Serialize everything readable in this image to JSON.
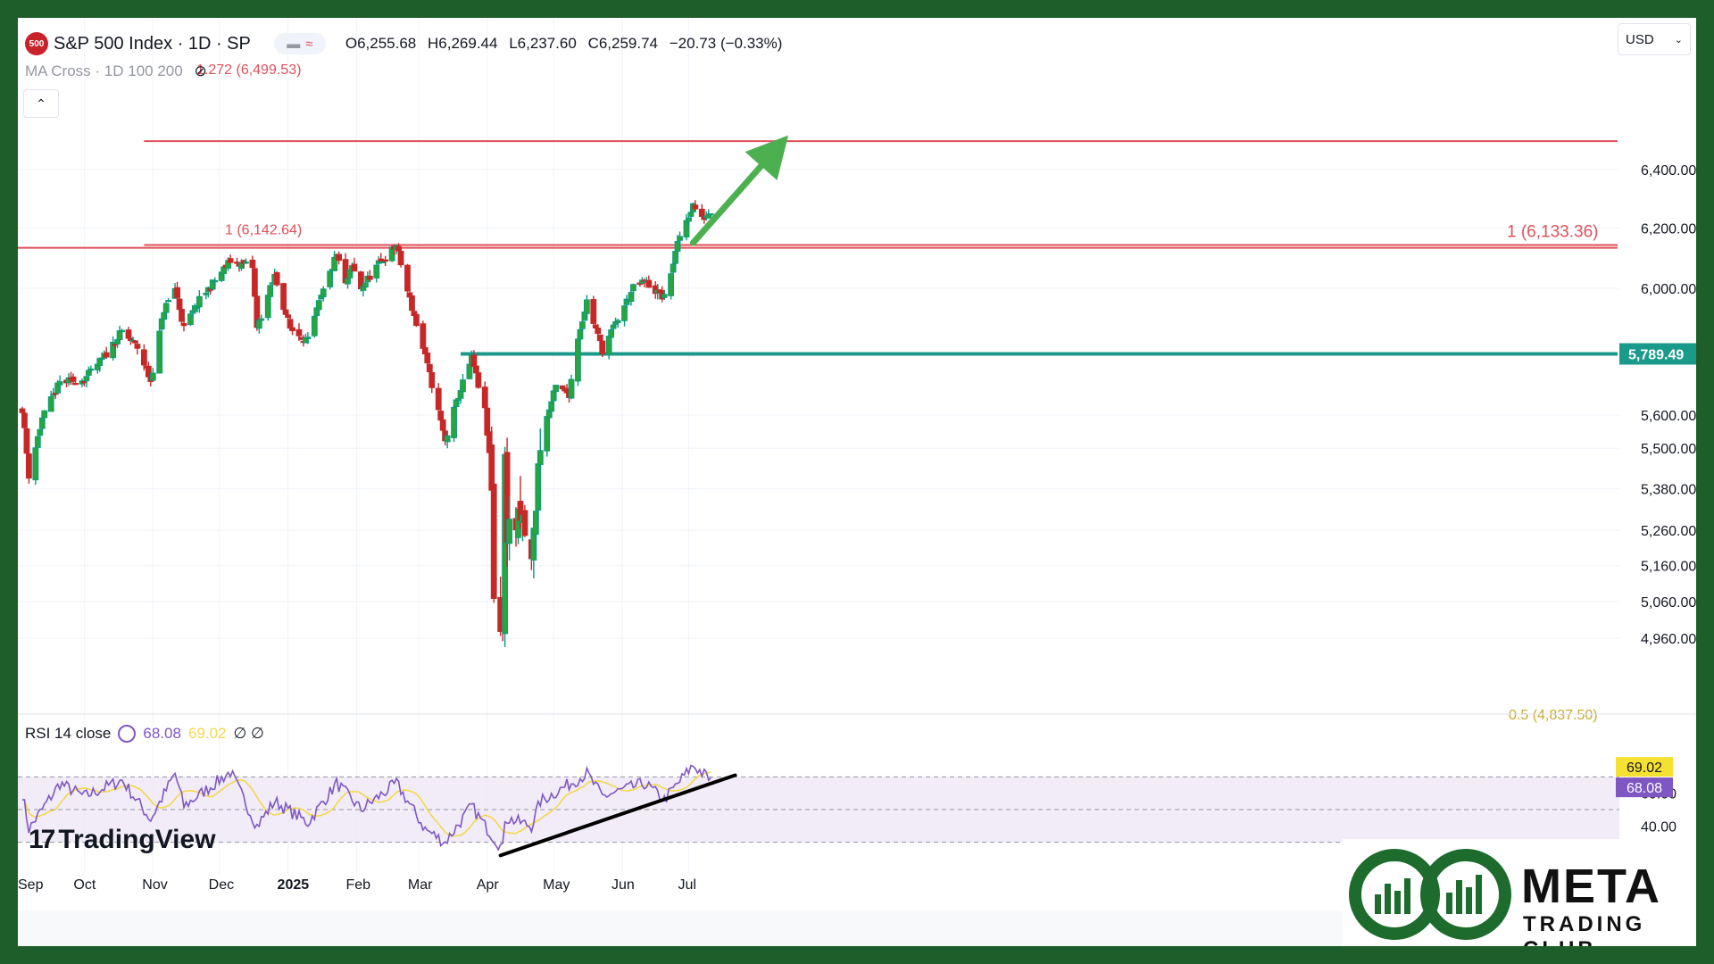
{
  "header": {
    "badge": "500",
    "symbol": "S&P 500 Index · 1D · SP",
    "open": "O6,255.68",
    "high": "H6,269.44",
    "low": "L6,237.60",
    "close": "C6,259.74",
    "change": "−20.73 (−0.33%)"
  },
  "indicator_label": "MA Cross · 1D 100 200",
  "currency": "USD",
  "rsi": {
    "label": "RSI 14 close",
    "value": "68.08",
    "ma_value": "69.02",
    "extra": "∅ ∅"
  },
  "branding": {
    "tv": "TradingView",
    "meta_name": "META",
    "meta_sub": "TRADING CLUB"
  },
  "colors": {
    "up": "#089981",
    "up_fill": "#26a541",
    "down": "#c62828",
    "fib": "#e0505a",
    "support": "#1a9a8a",
    "rsi_line": "#7e57c2",
    "rsi_ma": "#f2d84d",
    "arrow": "#4caf50"
  },
  "chart_data": {
    "type": "candlestick",
    "y_scale": "log",
    "x_labels": [
      "Sep",
      "Oct",
      "Nov",
      "Dec",
      "2025",
      "Feb",
      "Mar",
      "Apr",
      "May",
      "Jun",
      "Jul"
    ],
    "y_ticks": [
      4960,
      5060,
      5160,
      5260,
      5380,
      5500,
      5600,
      6000,
      6200,
      6400
    ],
    "y_tick_labels": [
      "4,960.00",
      "5,060.00",
      "5,160.00",
      "5,260.00",
      "5,380.00",
      "5,500.00",
      "5,600.00",
      "6,000.00",
      "6,200.00",
      "6,400.00"
    ],
    "waypoints": [
      {
        "date": "2024-09-03",
        "close": 5620
      },
      {
        "date": "2024-09-06",
        "close": 5420
      },
      {
        "date": "2024-09-12",
        "close": 5590
      },
      {
        "date": "2024-09-20",
        "close": 5700
      },
      {
        "date": "2024-10-01",
        "close": 5710
      },
      {
        "date": "2024-10-10",
        "close": 5780
      },
      {
        "date": "2024-10-18",
        "close": 5860
      },
      {
        "date": "2024-10-25",
        "close": 5810
      },
      {
        "date": "2024-10-31",
        "close": 5705
      },
      {
        "date": "2024-11-06",
        "close": 5930
      },
      {
        "date": "2024-11-11",
        "close": 6000
      },
      {
        "date": "2024-11-15",
        "close": 5870
      },
      {
        "date": "2024-11-22",
        "close": 5960
      },
      {
        "date": "2024-12-06",
        "close": 6090
      },
      {
        "date": "2024-12-16",
        "close": 6070
      },
      {
        "date": "2024-12-18",
        "close": 5870
      },
      {
        "date": "2024-12-26",
        "close": 6040
      },
      {
        "date": "2025-01-02",
        "close": 5870
      },
      {
        "date": "2025-01-10",
        "close": 5830
      },
      {
        "date": "2025-01-15",
        "close": 5950
      },
      {
        "date": "2025-01-23",
        "close": 6110
      },
      {
        "date": "2025-01-27",
        "close": 6010
      },
      {
        "date": "2025-01-30",
        "close": 6070
      },
      {
        "date": "2025-02-03",
        "close": 6000
      },
      {
        "date": "2025-02-10",
        "close": 6070
      },
      {
        "date": "2025-02-19",
        "close": 6140
      },
      {
        "date": "2025-02-24",
        "close": 5990
      },
      {
        "date": "2025-03-04",
        "close": 5780
      },
      {
        "date": "2025-03-10",
        "close": 5610
      },
      {
        "date": "2025-03-13",
        "close": 5520
      },
      {
        "date": "2025-03-19",
        "close": 5660
      },
      {
        "date": "2025-03-25",
        "close": 5775
      },
      {
        "date": "2025-03-31",
        "close": 5610
      },
      {
        "date": "2025-04-03",
        "close": 5400
      },
      {
        "date": "2025-04-04",
        "close": 5074
      },
      {
        "date": "2025-04-08",
        "close": 4982
      },
      {
        "date": "2025-04-09",
        "close": 5456
      },
      {
        "date": "2025-04-10",
        "close": 5268
      },
      {
        "date": "2025-04-17",
        "close": 5280
      },
      {
        "date": "2025-04-21",
        "close": 5160
      },
      {
        "date": "2025-04-25",
        "close": 5525
      },
      {
        "date": "2025-05-02",
        "close": 5686
      },
      {
        "date": "2025-05-08",
        "close": 5665
      },
      {
        "date": "2025-05-12",
        "close": 5844
      },
      {
        "date": "2025-05-16",
        "close": 5958
      },
      {
        "date": "2025-05-23",
        "close": 5802
      },
      {
        "date": "2025-06-06",
        "close": 6000
      },
      {
        "date": "2025-06-11",
        "close": 6022
      },
      {
        "date": "2025-06-20",
        "close": 5967
      },
      {
        "date": "2025-06-27",
        "close": 6173
      },
      {
        "date": "2025-07-03",
        "close": 6279
      },
      {
        "date": "2025-07-07",
        "close": 6229
      },
      {
        "date": "2025-07-11",
        "close": 6259
      }
    ],
    "levels": [
      {
        "label": "1.272 (6,499.53)",
        "value": 6499.53,
        "from_date": "2024-10-28"
      },
      {
        "label": "1 (6,142.64)",
        "value": 6142.64,
        "from_date": "2024-10-28"
      },
      {
        "label": "1 (6,133.36)",
        "value": 6133.36,
        "from_date": "2024-09-01"
      },
      {
        "label": "0.5 (4,837.50)",
        "value": 4837.5,
        "from_date": "2025-06-30"
      }
    ],
    "support": {
      "label": "5,789.49",
      "value": 5789.49,
      "from_date": "2025-03-20"
    },
    "trend_arrow": {
      "from_date": "2025-07-03",
      "from_value": 6150,
      "to_date": "2025-08-15",
      "to_value": 6520
    },
    "rsi_panel": {
      "ticks": [
        40,
        60
      ],
      "tick_labels": [
        "40.00",
        "60.00"
      ],
      "bands": [
        30,
        50,
        70
      ],
      "waypoints": [
        {
          "date": "2024-09-03",
          "rsi": 60
        },
        {
          "date": "2024-09-06",
          "rsi": 38
        },
        {
          "date": "2024-09-20",
          "rsi": 66
        },
        {
          "date": "2024-10-01",
          "rsi": 58
        },
        {
          "date": "2024-10-18",
          "rsi": 68
        },
        {
          "date": "2024-10-31",
          "rsi": 44
        },
        {
          "date": "2024-11-11",
          "rsi": 72
        },
        {
          "date": "2024-11-15",
          "rsi": 52
        },
        {
          "date": "2024-12-06",
          "rsi": 73
        },
        {
          "date": "2024-12-18",
          "rsi": 40
        },
        {
          "date": "2024-12-26",
          "rsi": 55
        },
        {
          "date": "2025-01-10",
          "rsi": 42
        },
        {
          "date": "2025-01-23",
          "rsi": 66
        },
        {
          "date": "2025-02-03",
          "rsi": 50
        },
        {
          "date": "2025-02-19",
          "rsi": 66
        },
        {
          "date": "2025-03-04",
          "rsi": 38
        },
        {
          "date": "2025-03-13",
          "rsi": 30
        },
        {
          "date": "2025-03-25",
          "rsi": 52
        },
        {
          "date": "2025-03-31",
          "rsi": 40
        },
        {
          "date": "2025-04-08",
          "rsi": 26
        },
        {
          "date": "2025-04-09",
          "rsi": 45
        },
        {
          "date": "2025-04-21",
          "rsi": 40
        },
        {
          "date": "2025-04-25",
          "rsi": 55
        },
        {
          "date": "2025-05-16",
          "rsi": 72
        },
        {
          "date": "2025-05-23",
          "rsi": 58
        },
        {
          "date": "2025-06-11",
          "rsi": 66
        },
        {
          "date": "2025-06-20",
          "rsi": 56
        },
        {
          "date": "2025-07-03",
          "rsi": 77
        },
        {
          "date": "2025-07-11",
          "rsi": 68.08
        }
      ],
      "ma_value": 69.02,
      "trendline": {
        "from_date": "2025-04-07",
        "from_rsi": 22,
        "to_date": "2025-07-22",
        "to_rsi": 71
      }
    }
  }
}
